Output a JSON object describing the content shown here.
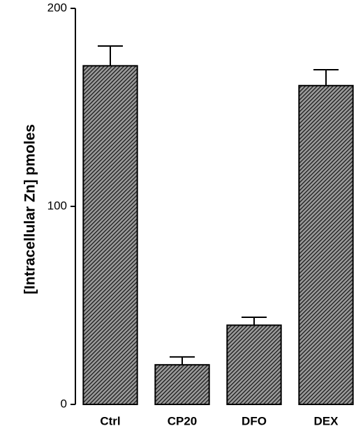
{
  "chart_data": {
    "type": "bar",
    "y_label": "[Intracellular Zn] pmoles",
    "categories": [
      "Ctrl",
      "CP20",
      "DFO",
      "DEX"
    ],
    "values": [
      171,
      20,
      40,
      161
    ],
    "errors": [
      10,
      4,
      4,
      8
    ],
    "color": "#333333",
    "ylim": [
      0,
      200
    ],
    "yticks": [
      0,
      100,
      200
    ],
    "grid": false
  }
}
